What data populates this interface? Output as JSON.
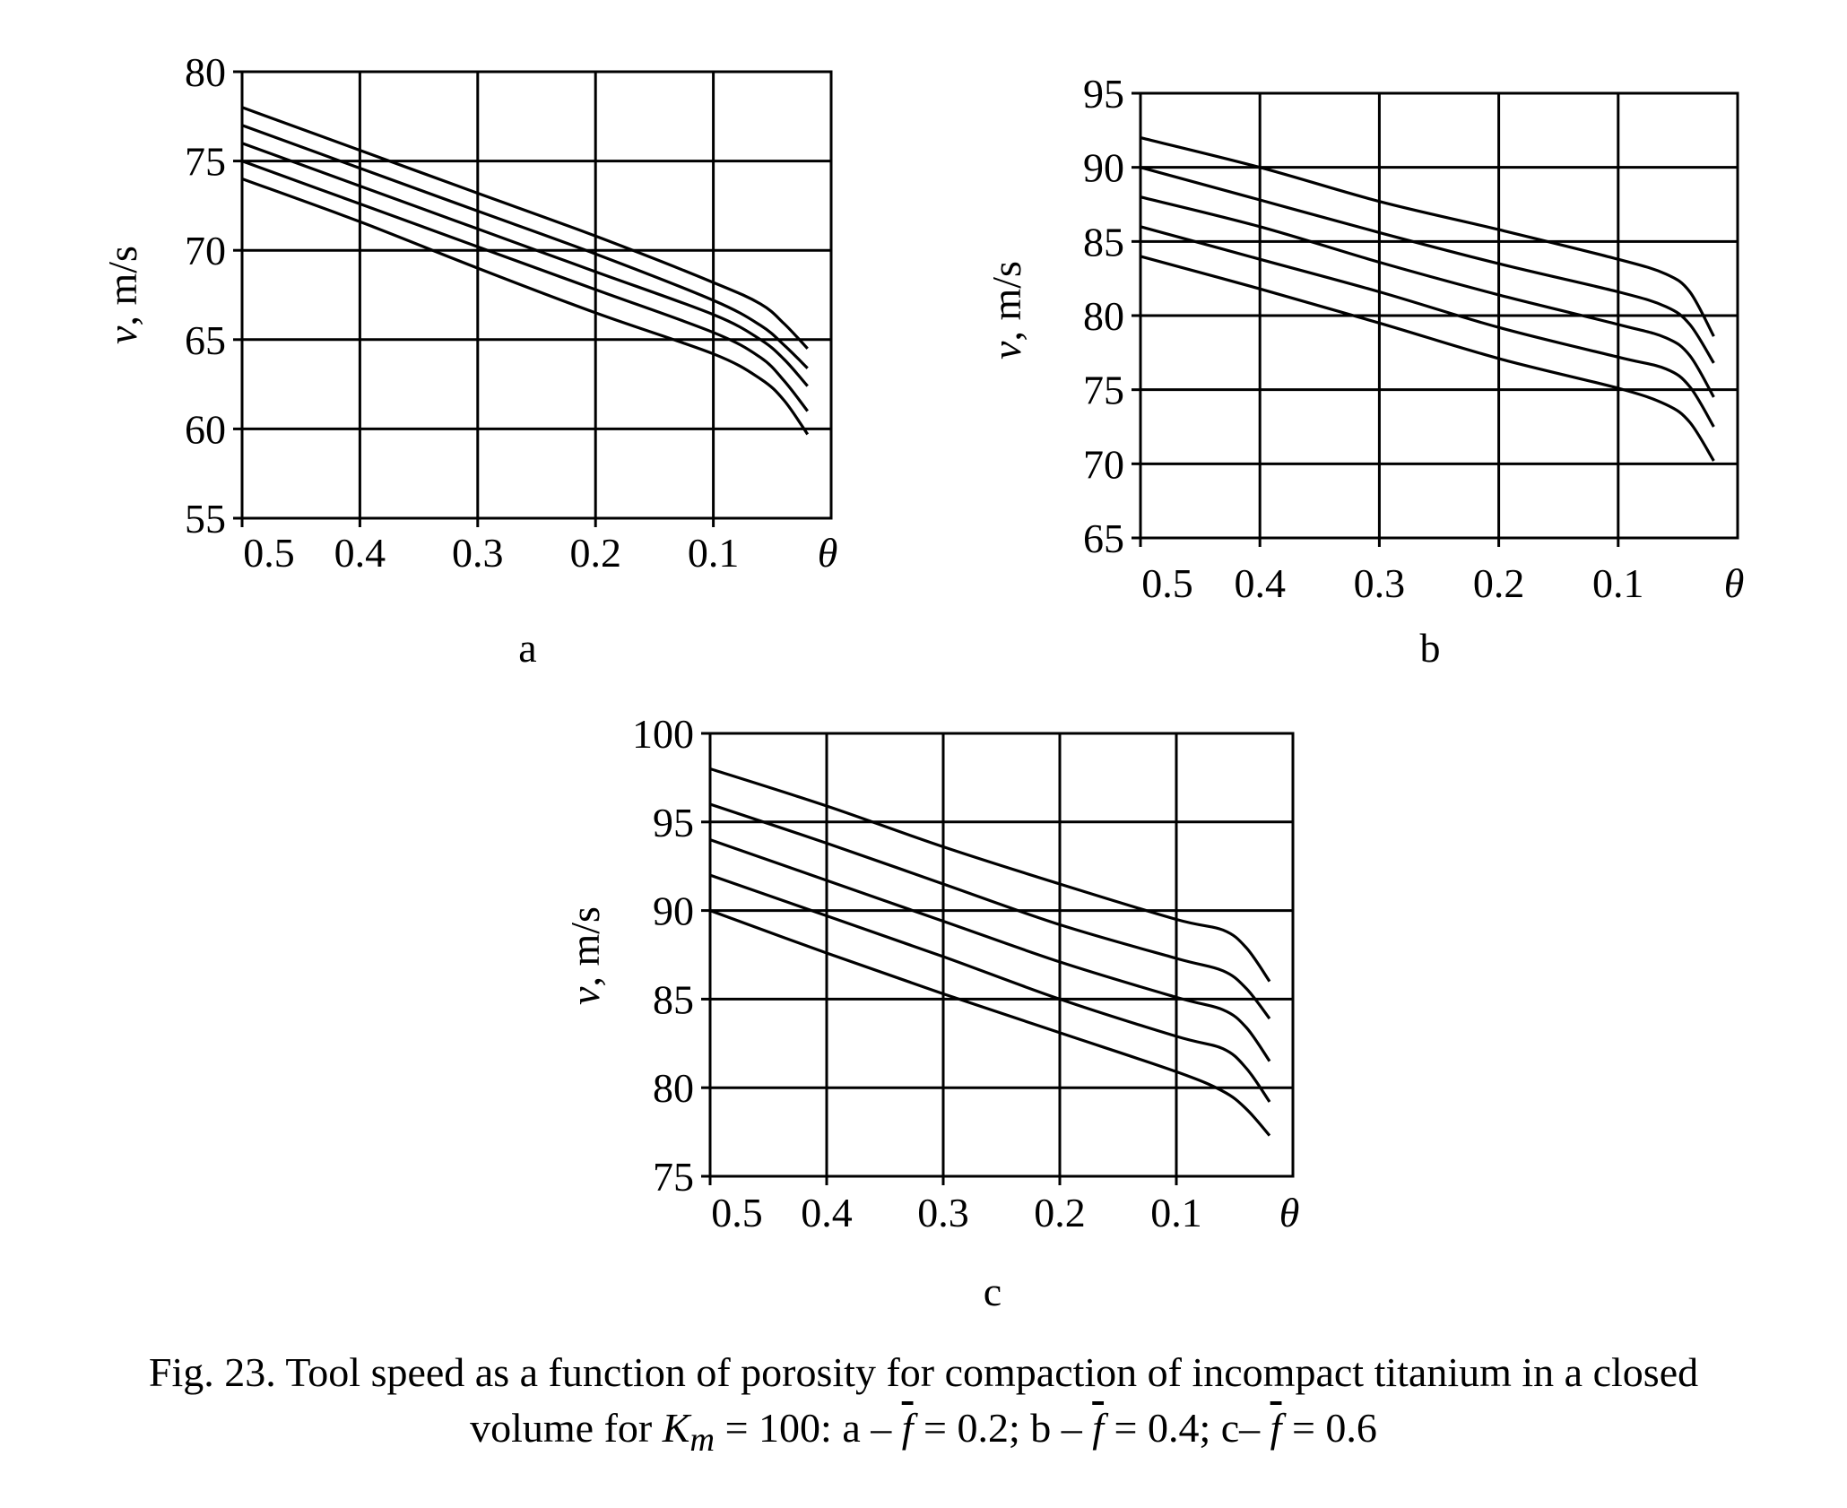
{
  "chart_data": [
    {
      "type": "line",
      "panel_label": "a",
      "ylabel_var": "v",
      "ylabel_unit": ", m/s",
      "x_end_label": "θ",
      "x_ticks": [
        0.5,
        0.4,
        0.3,
        0.2,
        0.1
      ],
      "x_tick_labels": [
        "0.5",
        "0.4",
        "0.3",
        "0.2",
        "0.1"
      ],
      "xlim": [
        0.5,
        0.0
      ],
      "y_ticks": [
        55,
        60,
        65,
        70,
        75,
        80
      ],
      "y_tick_labels": [
        "55",
        "60",
        "65",
        "70",
        "75",
        "80"
      ],
      "ylim": [
        55,
        80
      ],
      "grid": true,
      "series": [
        {
          "x": [
            0.5,
            0.4,
            0.3,
            0.2,
            0.1,
            0.06,
            0.04,
            0.02
          ],
          "y": [
            78.0,
            75.6,
            73.2,
            70.8,
            68.2,
            67.0,
            65.9,
            64.5
          ]
        },
        {
          "x": [
            0.5,
            0.4,
            0.3,
            0.2,
            0.1,
            0.06,
            0.04,
            0.02
          ],
          "y": [
            77.0,
            74.6,
            72.2,
            69.8,
            67.2,
            65.8,
            64.7,
            63.4
          ]
        },
        {
          "x": [
            0.5,
            0.4,
            0.3,
            0.2,
            0.1,
            0.06,
            0.04,
            0.02
          ],
          "y": [
            76.0,
            73.6,
            71.2,
            68.8,
            66.4,
            65.0,
            63.9,
            62.4
          ]
        },
        {
          "x": [
            0.5,
            0.4,
            0.3,
            0.2,
            0.1,
            0.06,
            0.04,
            0.02
          ],
          "y": [
            75.0,
            72.6,
            70.2,
            67.8,
            65.4,
            64.0,
            62.7,
            61.0
          ]
        },
        {
          "x": [
            0.5,
            0.4,
            0.3,
            0.2,
            0.1,
            0.06,
            0.04,
            0.02
          ],
          "y": [
            74.0,
            71.6,
            69.0,
            66.5,
            64.2,
            62.8,
            61.6,
            59.7
          ]
        }
      ]
    },
    {
      "type": "line",
      "panel_label": "b",
      "ylabel_var": "v",
      "ylabel_unit": ", m/s",
      "x_end_label": "θ",
      "x_ticks": [
        0.5,
        0.4,
        0.3,
        0.2,
        0.1
      ],
      "x_tick_labels": [
        "0.5",
        "0.4",
        "0.3",
        "0.2",
        "0.1"
      ],
      "xlim": [
        0.5,
        0.0
      ],
      "y_ticks": [
        65,
        70,
        75,
        80,
        85,
        90,
        95
      ],
      "y_tick_labels": [
        "65",
        "70",
        "75",
        "80",
        "85",
        "90",
        "95"
      ],
      "ylim": [
        65,
        95
      ],
      "grid": true,
      "series": [
        {
          "x": [
            0.5,
            0.4,
            0.3,
            0.2,
            0.1,
            0.06,
            0.04,
            0.02
          ],
          "y": [
            92.0,
            90.0,
            87.7,
            85.8,
            83.8,
            82.8,
            81.6,
            78.6
          ]
        },
        {
          "x": [
            0.5,
            0.4,
            0.3,
            0.2,
            0.1,
            0.06,
            0.04,
            0.02
          ],
          "y": [
            90.0,
            87.8,
            85.6,
            83.5,
            81.6,
            80.6,
            79.4,
            76.8
          ]
        },
        {
          "x": [
            0.5,
            0.4,
            0.3,
            0.2,
            0.1,
            0.06,
            0.04,
            0.02
          ],
          "y": [
            88.0,
            86.0,
            83.6,
            81.4,
            79.4,
            78.5,
            77.3,
            74.5
          ]
        },
        {
          "x": [
            0.5,
            0.4,
            0.3,
            0.2,
            0.1,
            0.06,
            0.04,
            0.02
          ],
          "y": [
            86.0,
            83.8,
            81.6,
            79.2,
            77.2,
            76.4,
            75.2,
            72.5
          ]
        },
        {
          "x": [
            0.5,
            0.4,
            0.3,
            0.2,
            0.1,
            0.06,
            0.04,
            0.02
          ],
          "y": [
            84.0,
            81.8,
            79.5,
            77.1,
            75.1,
            74.0,
            72.8,
            70.2
          ]
        }
      ]
    },
    {
      "type": "line",
      "panel_label": "c",
      "ylabel_var": "v",
      "ylabel_unit": ", m/s",
      "x_end_label": "θ",
      "x_ticks": [
        0.5,
        0.4,
        0.3,
        0.2,
        0.1
      ],
      "x_tick_labels": [
        "0.5",
        "0.4",
        "0.3",
        "0.2",
        "0.1"
      ],
      "xlim": [
        0.5,
        0.0
      ],
      "y_ticks": [
        75,
        80,
        85,
        90,
        95,
        100
      ],
      "y_tick_labels": [
        "75",
        "80",
        "85",
        "90",
        "95",
        "100"
      ],
      "ylim": [
        75,
        100
      ],
      "grid": true,
      "series": [
        {
          "x": [
            0.5,
            0.4,
            0.3,
            0.2,
            0.1,
            0.06,
            0.04,
            0.02
          ],
          "y": [
            98.0,
            95.9,
            93.6,
            91.5,
            89.5,
            88.9,
            87.9,
            86.0
          ]
        },
        {
          "x": [
            0.5,
            0.4,
            0.3,
            0.2,
            0.1,
            0.06,
            0.04,
            0.02
          ],
          "y": [
            96.0,
            93.8,
            91.5,
            89.2,
            87.3,
            86.6,
            85.6,
            83.9
          ]
        },
        {
          "x": [
            0.5,
            0.4,
            0.3,
            0.2,
            0.1,
            0.06,
            0.04,
            0.02
          ],
          "y": [
            94.0,
            91.7,
            89.4,
            87.1,
            85.1,
            84.4,
            83.4,
            81.5
          ]
        },
        {
          "x": [
            0.5,
            0.4,
            0.3,
            0.2,
            0.1,
            0.06,
            0.04,
            0.02
          ],
          "y": [
            92.0,
            89.7,
            87.4,
            85.0,
            82.9,
            82.2,
            81.1,
            79.2
          ]
        },
        {
          "x": [
            0.5,
            0.4,
            0.3,
            0.2,
            0.1,
            0.06,
            0.04,
            0.02
          ],
          "y": [
            90.0,
            87.6,
            85.3,
            83.1,
            80.9,
            79.8,
            78.8,
            77.3
          ]
        }
      ]
    }
  ],
  "caption": {
    "line1": "Fig. 23. Tool speed as a function of porosity for compaction of incompact titanium in a closed",
    "line2_prefix": "volume for ",
    "km_base": "K",
    "km_sub": "m",
    "line2_mid": " = 100: a – ",
    "f_symbol": "f",
    "a_value": " = 0.2; b – ",
    "b_value": " = 0.4; c– ",
    "c_value": " = 0.6"
  }
}
